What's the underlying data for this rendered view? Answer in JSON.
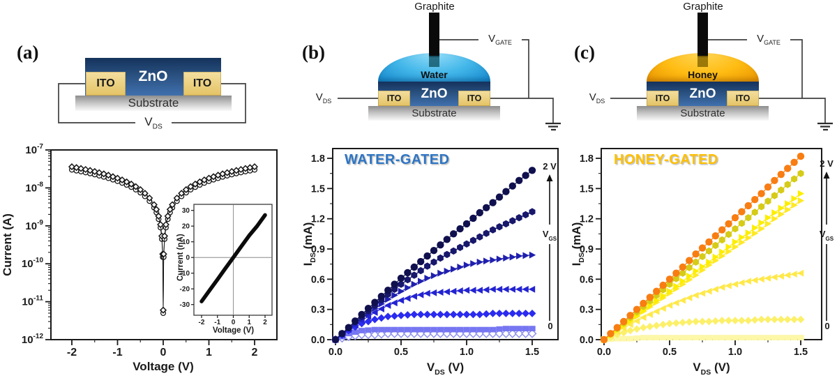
{
  "figure": {
    "panel_a": {
      "tag": "(a)",
      "schematic": {
        "zno": "ZnO",
        "ito_left": "ITO",
        "ito_right": "ITO",
        "substrate": "Substrate",
        "vds_main": "V",
        "vds_sub": "DS"
      }
    },
    "panel_b": {
      "tag": "(b)",
      "schematic": {
        "graphite": "Graphite",
        "liquid": "Water",
        "zno": "ZnO",
        "ito_left": "ITO",
        "ito_right": "ITO",
        "substrate": "Substrate",
        "vds_main": "V",
        "vds_sub": "DS",
        "vgate_main": "V",
        "vgate_sub": "GATE"
      }
    },
    "panel_c": {
      "tag": "(c)",
      "schematic": {
        "graphite": "Graphite",
        "liquid": "Honey",
        "zno": "ZnO",
        "ito_left": "ITO",
        "ito_right": "ITO",
        "substrate": "Substrate",
        "vds_main": "V",
        "vds_sub": "DS",
        "vgate_main": "V",
        "vgate_sub": "GATE"
      }
    }
  },
  "chart_data": [
    {
      "id": "a_main",
      "type": "scatter",
      "panel": "a",
      "xlabel": "Voltage (V)",
      "ylabel": "Current (A)",
      "xticks": [
        -2,
        -1,
        0,
        1,
        2
      ],
      "xlim": [
        -2.45,
        2.5
      ],
      "yscale": "log",
      "ylim": [
        1e-12,
        1e-07
      ],
      "yticks_exponents": [
        -7,
        -8,
        -9,
        -10,
        -11,
        -12
      ],
      "x": [
        -2,
        -1.9,
        -1.8,
        -1.7,
        -1.6,
        -1.5,
        -1.4,
        -1.3,
        -1.2,
        -1.1,
        -1.0,
        -0.9,
        -0.8,
        -0.7,
        -0.6,
        -0.5,
        -0.4,
        -0.3,
        -0.2,
        -0.15,
        -0.1,
        -0.06,
        -0.03,
        -0.01,
        0,
        0.01,
        0.03,
        0.06,
        0.1,
        0.15,
        0.2,
        0.3,
        0.4,
        0.5,
        0.6,
        0.7,
        0.8,
        0.9,
        1.0,
        1.1,
        1.2,
        1.3,
        1.4,
        1.5,
        1.6,
        1.7,
        1.8,
        1.9,
        2.0
      ],
      "series": [
        {
          "name": "sweep-circles",
          "marker": "circle-open",
          "color": "#161616",
          "y": [
            3e-08,
            2.85e-08,
            2.7e-08,
            2.55e-08,
            2.4e-08,
            2.25e-08,
            2.1e-08,
            1.95e-08,
            1.8e-08,
            1.65e-08,
            1.5e-08,
            1.35e-08,
            1.2e-08,
            1.05e-08,
            9e-09,
            7.5e-09,
            6e-09,
            4.5e-09,
            3e-09,
            2.25e-09,
            1.5e-09,
            9e-10,
            4.5e-10,
            1.5e-10,
            5e-12,
            1.5e-10,
            4.5e-10,
            9e-10,
            1.5e-09,
            2.25e-09,
            3e-09,
            4.5e-09,
            6e-09,
            7.5e-09,
            9e-09,
            1.05e-08,
            1.2e-08,
            1.35e-08,
            1.5e-08,
            1.65e-08,
            1.8e-08,
            1.95e-08,
            2.1e-08,
            2.25e-08,
            2.4e-08,
            2.55e-08,
            2.7e-08,
            2.85e-08,
            3e-08
          ]
        },
        {
          "name": "sweep-diamonds",
          "marker": "diamond-open",
          "color": "#161616",
          "y": [
            3.6e-08,
            3.42e-08,
            3.24e-08,
            3.06e-08,
            2.88e-08,
            2.7e-08,
            2.52e-08,
            2.34e-08,
            2.16e-08,
            1.98e-08,
            1.8e-08,
            1.62e-08,
            1.44e-08,
            1.26e-08,
            1.08e-08,
            9e-09,
            7.2e-09,
            5.4e-09,
            3.6e-09,
            2.7e-09,
            1.8e-09,
            1.08e-09,
            5.4e-10,
            1.8e-10,
            6e-12,
            1.8e-10,
            5.4e-10,
            1.08e-09,
            1.8e-09,
            2.7e-09,
            3.6e-09,
            5.4e-09,
            7.2e-09,
            9e-09,
            1.08e-08,
            1.26e-08,
            1.44e-08,
            1.62e-08,
            1.8e-08,
            1.98e-08,
            2.16e-08,
            2.34e-08,
            2.52e-08,
            2.7e-08,
            2.88e-08,
            3.06e-08,
            3.24e-08,
            3.42e-08,
            3.6e-08
          ]
        }
      ]
    },
    {
      "id": "a_inset",
      "type": "line",
      "panel": "a",
      "xlabel": "Voltage (V)",
      "ylabel": "Current (nA)",
      "xticks": [
        -2,
        -1,
        0,
        1,
        2
      ],
      "yticks": [
        30,
        20,
        10,
        0,
        -10,
        -20,
        -30
      ],
      "x": [
        -2,
        -1.5,
        -1,
        -0.5,
        0,
        0.5,
        1,
        1.5,
        2
      ],
      "series": [
        {
          "name": "linear-IV",
          "color": "#0b0b0b",
          "y": [
            -28,
            -21,
            -14,
            -7,
            0,
            7,
            14,
            20,
            27
          ]
        }
      ]
    },
    {
      "id": "b",
      "type": "scatter",
      "panel": "b",
      "title": "WATER-GATED",
      "title_color": "#2e75c3",
      "xlabel_main": "V",
      "xlabel_sub": "DS",
      "xlabel_unit": " (V)",
      "ylabel_main": "I",
      "ylabel_sub": "DS",
      "ylabel_unit": " (mA)",
      "xticks": [
        0,
        0.5,
        1.0,
        1.5
      ],
      "yticks": [
        0,
        0.3,
        0.6,
        0.9,
        1.2,
        1.5,
        1.8
      ],
      "xlim": [
        0,
        1.7
      ],
      "ylim": [
        0,
        1.9
      ],
      "gate": {
        "top": "2 V",
        "label_main": "V",
        "label_sub": "GS",
        "bottom": "0"
      },
      "x": [
        0,
        0.1,
        0.2,
        0.3,
        0.4,
        0.5,
        0.6,
        0.7,
        0.8,
        0.9,
        1.0,
        1.1,
        1.2,
        1.3,
        1.4,
        1.5
      ],
      "series": [
        {
          "name": "vgs-top",
          "gate_label": "2 V",
          "marker": "circle",
          "color": "#10104e",
          "y": [
            0,
            0.12,
            0.25,
            0.37,
            0.49,
            0.61,
            0.72,
            0.83,
            0.94,
            1.05,
            1.15,
            1.26,
            1.36,
            1.47,
            1.58,
            1.68
          ]
        },
        {
          "name": "vgs-2",
          "gate_label": "",
          "marker": "hexagon",
          "color": "#17176b",
          "y": [
            0,
            0.12,
            0.23,
            0.34,
            0.45,
            0.55,
            0.64,
            0.73,
            0.81,
            0.88,
            0.95,
            1.02,
            1.09,
            1.15,
            1.21,
            1.27
          ]
        },
        {
          "name": "vgs-3",
          "gate_label": "",
          "marker": "triangle-right",
          "color": "#1f1fae",
          "y": [
            0,
            0.11,
            0.21,
            0.31,
            0.4,
            0.48,
            0.55,
            0.61,
            0.66,
            0.7,
            0.74,
            0.77,
            0.79,
            0.81,
            0.83,
            0.84
          ]
        },
        {
          "name": "vgs-4",
          "gate_label": "",
          "marker": "triangle-left",
          "color": "#2323d2",
          "y": [
            0,
            0.1,
            0.19,
            0.27,
            0.34,
            0.39,
            0.43,
            0.46,
            0.47,
            0.48,
            0.49,
            0.49,
            0.5,
            0.5,
            0.5,
            0.5
          ]
        },
        {
          "name": "vgs-5",
          "gate_label": "",
          "marker": "diamond",
          "color": "#2b2bf0",
          "y": [
            0,
            0.09,
            0.16,
            0.2,
            0.23,
            0.24,
            0.25,
            0.25,
            0.25,
            0.25,
            0.25,
            0.25,
            0.26,
            0.26,
            0.26,
            0.26
          ]
        },
        {
          "name": "vgs-6",
          "gate_label": "",
          "marker": "square",
          "color": "#7676f2",
          "y": [
            0,
            0.06,
            0.09,
            0.1,
            0.1,
            0.1,
            0.1,
            0.1,
            0.1,
            0.1,
            0.1,
            0.1,
            0.1,
            0.11,
            0.11,
            0.11
          ]
        },
        {
          "name": "vgs-bottom",
          "gate_label": "0",
          "marker": "diamond-open",
          "color": "#9093ef",
          "y": [
            0,
            0.03,
            0.05,
            0.05,
            0.06,
            0.06,
            0.06,
            0.06,
            0.06,
            0.06,
            0.06,
            0.06,
            0.06,
            0.06,
            0.06,
            0.06
          ]
        }
      ]
    },
    {
      "id": "c",
      "type": "scatter",
      "panel": "c",
      "title": "HONEY-GATED",
      "title_color": "#ffc000",
      "xlabel_main": "V",
      "xlabel_sub": "DS",
      "xlabel_unit": " (V)",
      "ylabel_main": "I",
      "ylabel_sub": "DS",
      "ylabel_unit": " (mA)",
      "xticks": [
        0,
        0.5,
        1.0,
        1.5
      ],
      "yticks": [
        0,
        0.3,
        0.6,
        0.9,
        1.2,
        1.5,
        1.8
      ],
      "xlim": [
        0,
        1.7
      ],
      "ylim": [
        0,
        1.9
      ],
      "gate": {
        "top": "2 V",
        "label_main": "V",
        "label_sub": "GS",
        "bottom": "0"
      },
      "x": [
        0,
        0.1,
        0.2,
        0.3,
        0.4,
        0.5,
        0.6,
        0.7,
        0.8,
        0.9,
        1.0,
        1.1,
        1.2,
        1.3,
        1.4,
        1.5
      ],
      "series": [
        {
          "name": "vgs-top",
          "gate_label": "2 V",
          "marker": "circle",
          "color": "#f87d12",
          "y": [
            0,
            0.12,
            0.24,
            0.36,
            0.48,
            0.6,
            0.72,
            0.85,
            0.97,
            1.09,
            1.21,
            1.33,
            1.45,
            1.58,
            1.7,
            1.82
          ]
        },
        {
          "name": "vgs-2",
          "gate_label": "",
          "marker": "hexagon",
          "color": "#d6cb17",
          "y": [
            0,
            0.11,
            0.22,
            0.33,
            0.44,
            0.55,
            0.66,
            0.77,
            0.88,
            0.99,
            1.1,
            1.21,
            1.32,
            1.43,
            1.54,
            1.65
          ]
        },
        {
          "name": "vgs-3",
          "gate_label": "",
          "marker": "triangle-right",
          "color": "#fdee00",
          "y": [
            0,
            0.1,
            0.19,
            0.29,
            0.39,
            0.48,
            0.58,
            0.68,
            0.77,
            0.87,
            0.97,
            1.06,
            1.16,
            1.26,
            1.35,
            1.45
          ]
        },
        {
          "name": "vgs-4",
          "gate_label": "",
          "marker": "triangle-right",
          "color": "#ffe926",
          "y": [
            0,
            0.09,
            0.18,
            0.28,
            0.37,
            0.46,
            0.55,
            0.64,
            0.74,
            0.83,
            0.92,
            1.01,
            1.1,
            1.2,
            1.29,
            1.38
          ]
        },
        {
          "name": "vgs-5",
          "gate_label": "",
          "marker": "triangle-left",
          "color": "#ffe94a",
          "y": [
            0,
            0.08,
            0.15,
            0.22,
            0.28,
            0.34,
            0.39,
            0.44,
            0.48,
            0.52,
            0.55,
            0.58,
            0.6,
            0.62,
            0.64,
            0.66
          ]
        },
        {
          "name": "vgs-6",
          "gate_label": "",
          "marker": "diamond",
          "color": "#fcf06a",
          "y": [
            0,
            0.05,
            0.09,
            0.12,
            0.14,
            0.16,
            0.17,
            0.18,
            0.18,
            0.19,
            0.19,
            0.19,
            0.2,
            0.2,
            0.2,
            0.2
          ]
        },
        {
          "name": "vgs-bottom",
          "gate_label": "0",
          "marker": "square",
          "color": "#fdf7a8",
          "y": [
            0,
            0.01,
            0.01,
            0.02,
            0.02,
            0.02,
            0.02,
            0.02,
            0.02,
            0.02,
            0.02,
            0.02,
            0.02,
            0.02,
            0.02,
            0.02
          ]
        }
      ]
    }
  ]
}
